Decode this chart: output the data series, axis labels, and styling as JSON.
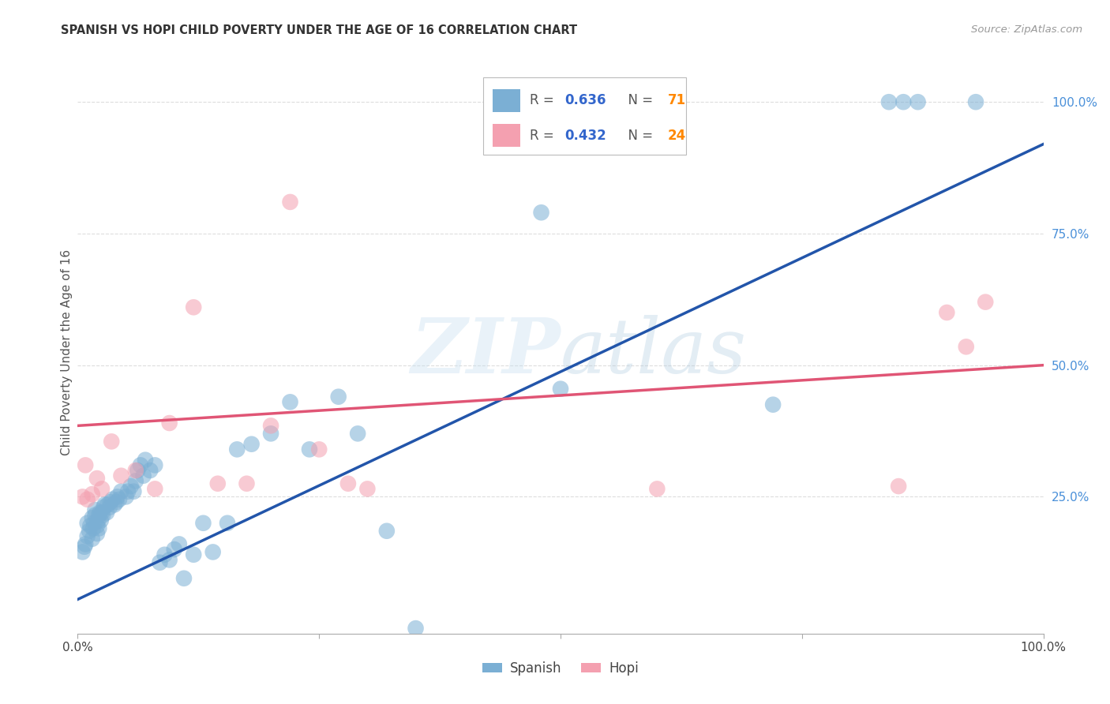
{
  "title": "SPANISH VS HOPI CHILD POVERTY UNDER THE AGE OF 16 CORRELATION CHART",
  "source": "Source: ZipAtlas.com",
  "ylabel": "Child Poverty Under the Age of 16",
  "spanish_color": "#7BAFD4",
  "hopi_color": "#F4A0B0",
  "spanish_line_color": "#2255AA",
  "hopi_line_color": "#E05575",
  "r_spanish": "0.636",
  "n_spanish": "71",
  "r_hopi": "0.432",
  "n_hopi": "24",
  "r_n_color": "#3366CC",
  "n_val_color": "#FF8800",
  "background_color": "#ffffff",
  "grid_color": "#dddddd",
  "spanish_x": [
    0.005,
    0.007,
    0.008,
    0.01,
    0.01,
    0.012,
    0.013,
    0.015,
    0.015,
    0.016,
    0.017,
    0.018,
    0.018,
    0.02,
    0.02,
    0.021,
    0.022,
    0.022,
    0.023,
    0.024,
    0.025,
    0.026,
    0.027,
    0.028,
    0.03,
    0.031,
    0.033,
    0.034,
    0.036,
    0.038,
    0.04,
    0.041,
    0.043,
    0.045,
    0.05,
    0.052,
    0.055,
    0.058,
    0.06,
    0.062,
    0.065,
    0.068,
    0.07,
    0.075,
    0.08,
    0.085,
    0.09,
    0.095,
    0.1,
    0.105,
    0.11,
    0.12,
    0.13,
    0.14,
    0.155,
    0.165,
    0.18,
    0.2,
    0.22,
    0.24,
    0.27,
    0.29,
    0.32,
    0.35,
    0.48,
    0.5,
    0.72,
    0.84,
    0.855,
    0.87,
    0.93
  ],
  "spanish_y": [
    0.145,
    0.155,
    0.16,
    0.175,
    0.2,
    0.185,
    0.195,
    0.17,
    0.21,
    0.19,
    0.2,
    0.215,
    0.225,
    0.18,
    0.195,
    0.205,
    0.19,
    0.215,
    0.22,
    0.205,
    0.22,
    0.215,
    0.23,
    0.235,
    0.22,
    0.235,
    0.23,
    0.24,
    0.245,
    0.235,
    0.24,
    0.25,
    0.245,
    0.26,
    0.25,
    0.26,
    0.27,
    0.26,
    0.28,
    0.3,
    0.31,
    0.29,
    0.32,
    0.3,
    0.31,
    0.125,
    0.14,
    0.13,
    0.15,
    0.16,
    0.095,
    0.14,
    0.2,
    0.145,
    0.2,
    0.34,
    0.35,
    0.37,
    0.43,
    0.34,
    0.44,
    0.37,
    0.185,
    0.0,
    0.79,
    0.455,
    0.425,
    1.0,
    1.0,
    1.0,
    1.0
  ],
  "hopi_x": [
    0.005,
    0.008,
    0.01,
    0.015,
    0.02,
    0.025,
    0.035,
    0.045,
    0.06,
    0.08,
    0.095,
    0.12,
    0.145,
    0.175,
    0.2,
    0.22,
    0.25,
    0.28,
    0.3,
    0.6,
    0.85,
    0.9,
    0.92,
    0.94
  ],
  "hopi_y": [
    0.25,
    0.31,
    0.245,
    0.255,
    0.285,
    0.265,
    0.355,
    0.29,
    0.3,
    0.265,
    0.39,
    0.61,
    0.275,
    0.275,
    0.385,
    0.81,
    0.34,
    0.275,
    0.265,
    0.265,
    0.27,
    0.6,
    0.535,
    0.62
  ],
  "spanish_line_x0": 0.0,
  "spanish_line_y0": 0.055,
  "spanish_line_x1": 1.0,
  "spanish_line_y1": 0.92,
  "hopi_line_x0": 0.0,
  "hopi_line_y0": 0.385,
  "hopi_line_x1": 1.0,
  "hopi_line_y1": 0.5,
  "xlim": [
    0.0,
    1.0
  ],
  "ylim": [
    -0.01,
    1.06
  ],
  "xticks": [
    0.0,
    0.25,
    0.5,
    0.75,
    1.0
  ],
  "yticks": [
    0.25,
    0.5,
    0.75,
    1.0
  ],
  "xticklabels": [
    "0.0%",
    "",
    "",
    "",
    "100.0%"
  ],
  "yticklabels": [
    "25.0%",
    "50.0%",
    "75.0%",
    "100.0%"
  ]
}
